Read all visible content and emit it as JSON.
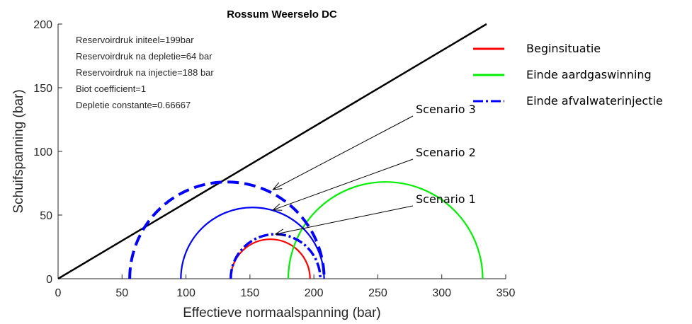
{
  "chart_data": {
    "type": "line",
    "title": "Rossum Weerselo DC",
    "xlabel": "Effectieve normaalspanning (bar)",
    "ylabel": "Schuifspanning (bar)",
    "xlim": [
      0,
      350
    ],
    "ylim": [
      0,
      200
    ],
    "xticks": [
      0,
      50,
      100,
      150,
      200,
      250,
      300,
      350
    ],
    "yticks": [
      0,
      50,
      100,
      150,
      200
    ],
    "grid": false,
    "annotations": [
      "Reservoirdruk initeel=199bar",
      "Reservoirdruk na depletie=64 bar",
      "Reservoirdruk na injectie=188 bar",
      "Biot coefficient=1",
      "Depletie constante=0.66667"
    ],
    "legend": {
      "placement": "right-outside",
      "entries": [
        {
          "label": "Beginsituatie",
          "color": "#ff0000",
          "style": "solid"
        },
        {
          "label": "Einde aardgaswinning",
          "color": "#00ee00",
          "style": "solid"
        },
        {
          "label": "Einde afvalwaterinjectie",
          "color": "#0000ff",
          "style": "dashdot"
        }
      ]
    },
    "failure_line": {
      "color": "#000000",
      "points": [
        [
          0,
          0
        ],
        [
          335,
          200
        ]
      ]
    },
    "series": [
      {
        "name": "Beginsituatie",
        "color": "#ff0000",
        "style": "solid",
        "center": 166,
        "radius": 31
      },
      {
        "name": "Einde aardgaswinning",
        "color": "#00ee00",
        "style": "solid",
        "center": 256,
        "radius": 76
      },
      {
        "name": "Einde afvalwaterinjectie",
        "color": "#0000ff",
        "style": "dashdot",
        "center": 170,
        "radius": 35
      },
      {
        "color": "#0000ff",
        "style": "solid",
        "center": 152,
        "radius": 56
      },
      {
        "color": "#0000ff",
        "style": "dashed",
        "center": 132,
        "radius": 76
      }
    ],
    "scenario_labels": [
      {
        "text": "Scenario 3",
        "target": [
          168,
          70
        ]
      },
      {
        "text": "Scenario 2",
        "target": [
          168,
          54
        ]
      },
      {
        "text": "Scenario 1",
        "target": [
          170,
          35
        ]
      }
    ]
  }
}
